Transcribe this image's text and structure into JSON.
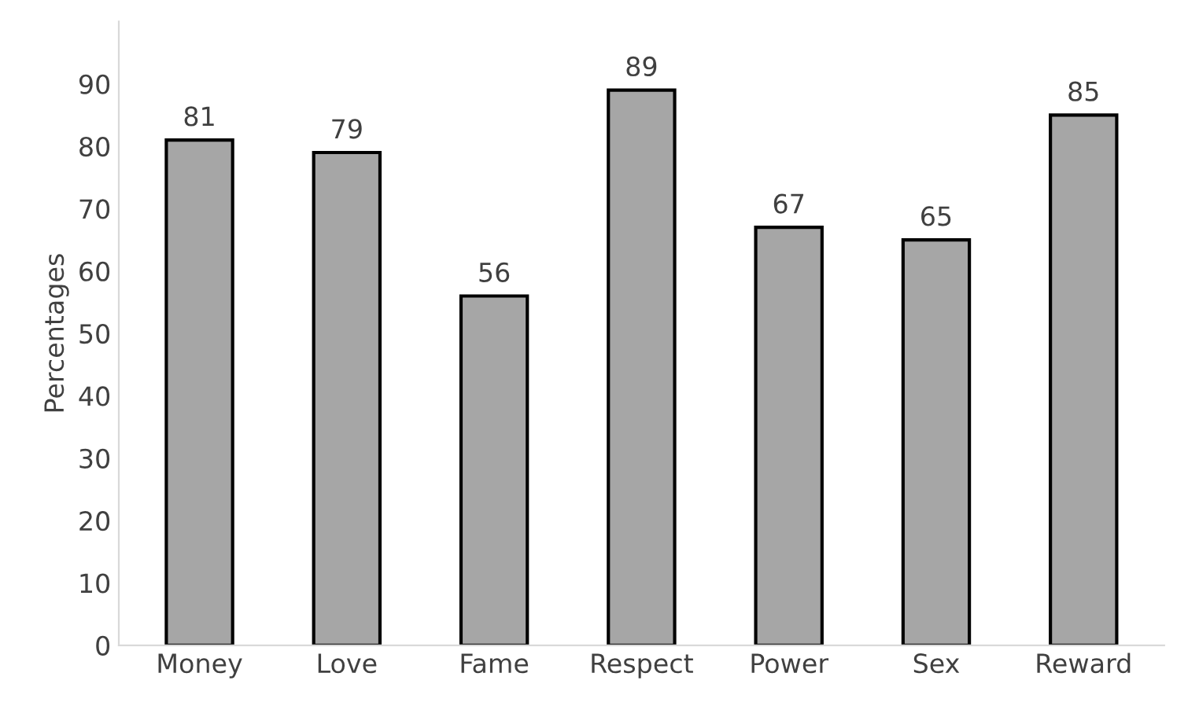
{
  "chart_data": {
    "type": "bar",
    "ylabel": "Percentages",
    "categories": [
      "Money",
      "Love",
      "Fame",
      "Respect",
      "Power",
      "Sex",
      "Reward"
    ],
    "values": [
      81,
      79,
      56,
      89,
      67,
      65,
      85
    ],
    "color": "#a6a6a6",
    "data_labels": true,
    "grid": false,
    "legend": false,
    "ylim": [
      0,
      100
    ],
    "yticks": [
      0,
      10,
      20,
      30,
      40,
      50,
      60,
      70,
      80,
      90
    ]
  }
}
